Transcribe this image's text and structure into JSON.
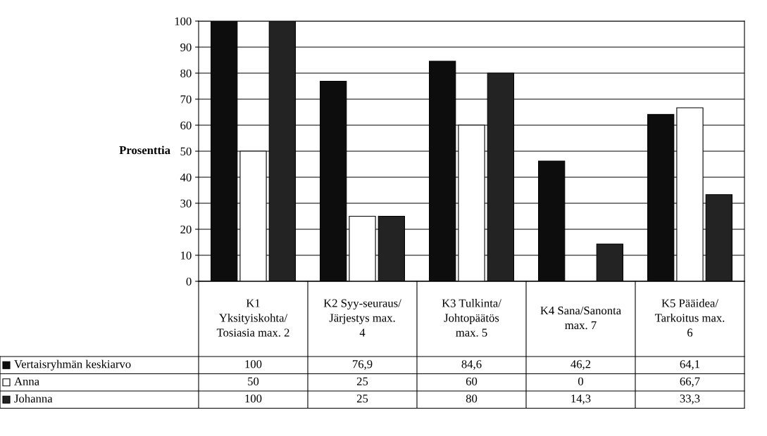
{
  "chart_data": {
    "type": "bar",
    "ylabel": "Prosenttia",
    "categories": [
      "K1 Yksityiskohta/Tosiasia max. 2",
      "K2 Syy-seuraus/Järjestys max. 4",
      "K3 Tulkinta/Johtopäätös max. 5",
      "K4 Sana/Sanonta max. 7",
      "K5 Pääidea/Tarkoitus max. 6"
    ],
    "series": [
      {
        "name": "Vertaisryhmän keskiarvo",
        "color": "#0d0d0d",
        "values": [
          100,
          76.9,
          84.6,
          46.2,
          64.1
        ],
        "value_labels": [
          "100",
          "76,9",
          "84,6",
          "46,2",
          "64,1"
        ]
      },
      {
        "name": "Anna",
        "color": "#ffffff",
        "values": [
          50,
          25,
          60,
          0,
          66.7
        ],
        "value_labels": [
          "50",
          "25",
          "60",
          "0",
          "66,7"
        ]
      },
      {
        "name": "Johanna",
        "color": "#232323",
        "values": [
          100,
          25,
          80,
          14.3,
          33.3
        ],
        "value_labels": [
          "100",
          "25",
          "80",
          "14,3",
          "33,3"
        ]
      }
    ],
    "ylim": [
      0,
      100
    ],
    "yticks": [
      0,
      10,
      20,
      30,
      40,
      50,
      60,
      70,
      80,
      90,
      100
    ],
    "grid": "y",
    "legend": "bottom"
  }
}
